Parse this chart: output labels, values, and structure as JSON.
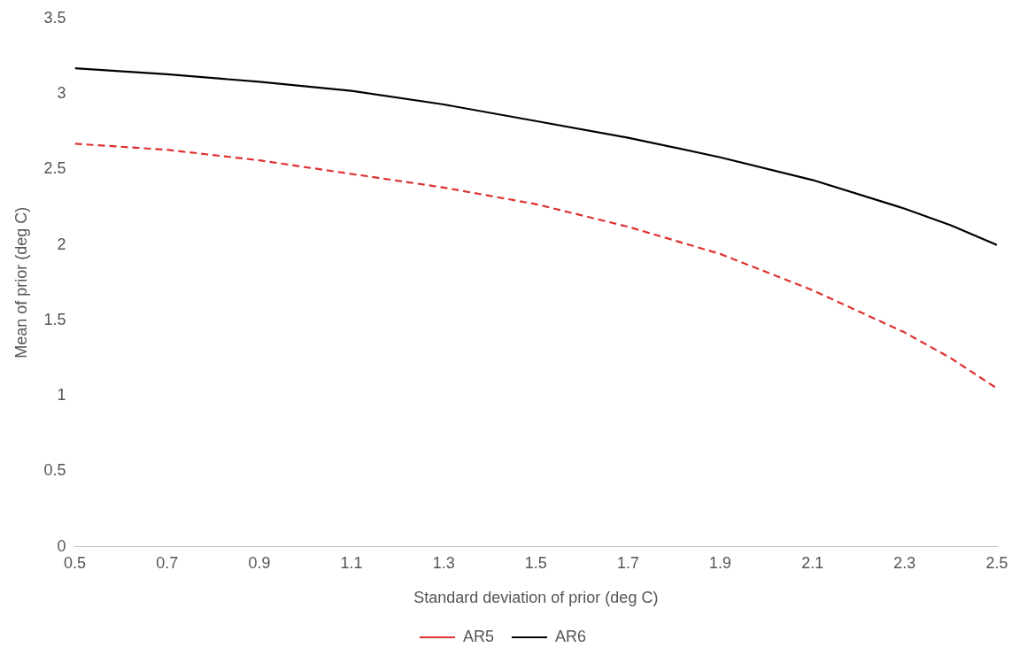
{
  "chart_data": {
    "type": "line",
    "xlabel": "Standard deviation of prior (deg C)",
    "ylabel": "Mean of prior (deg C)",
    "x": [
      0.5,
      0.7,
      0.9,
      1.1,
      1.3,
      1.5,
      1.7,
      1.9,
      2.1,
      2.3,
      2.4,
      2.5
    ],
    "series": [
      {
        "name": "AR5",
        "color": "#e03030",
        "line_style": "dashed",
        "values": [
          2.67,
          2.63,
          2.56,
          2.47,
          2.38,
          2.27,
          2.12,
          1.94,
          1.7,
          1.42,
          1.25,
          1.05
        ]
      },
      {
        "name": "AR6",
        "color": "#000000",
        "line_style": "solid",
        "values": [
          3.17,
          3.13,
          3.08,
          3.02,
          2.93,
          2.82,
          2.71,
          2.58,
          2.43,
          2.24,
          2.13,
          2.0
        ]
      }
    ],
    "xlim": [
      0.5,
      2.5
    ],
    "xticks": [
      0.5,
      0.7,
      0.9,
      1.1,
      1.3,
      1.5,
      1.7,
      1.9,
      2.1,
      2.3,
      2.5
    ],
    "ylim": [
      0,
      3.5
    ],
    "yticks": [
      0,
      0.5,
      1,
      1.5,
      2,
      2.5,
      3,
      3.5
    ],
    "grid": false,
    "legend": "bottom",
    "marker": "none"
  }
}
